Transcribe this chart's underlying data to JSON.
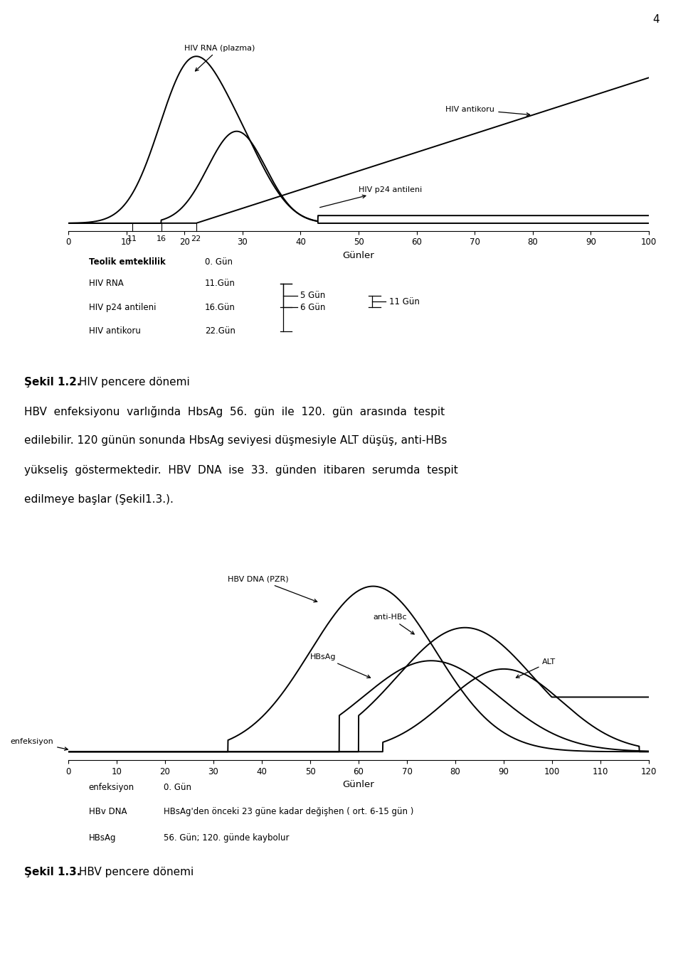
{
  "page_number": "4",
  "bg_color": "#ffffff",
  "fig1": {
    "xlabel": "Günler",
    "xlim": [
      0,
      100
    ],
    "xticks": [
      0,
      10,
      20,
      30,
      40,
      50,
      60,
      70,
      80,
      90,
      100
    ],
    "ylim": [
      -0.05,
      1.3
    ],
    "day_labels": [
      "11",
      "16",
      "22"
    ],
    "day_positions": [
      11,
      16,
      22
    ]
  },
  "fig2": {
    "xlabel": "Günler",
    "xlim": [
      0,
      120
    ],
    "xticks": [
      0,
      10,
      20,
      30,
      40,
      50,
      60,
      70,
      80,
      90,
      100,
      110,
      120
    ],
    "ylim": [
      -0.05,
      1.2
    ]
  },
  "text_lines": [
    [
      "bold",
      "Şekil 1.2.",
      " HIV pencere dönemi"
    ],
    [
      "normal",
      "HBV  enfeksiyonu  varlığında  HbsAg  56.  gün  ile  120.  gün  arasında  tespit"
    ],
    [
      "normal",
      "edilebilir. 120 günün sonunda HbsAg seviyesi düşmesiyle ALT düşüş, anti-HBs"
    ],
    [
      "normal",
      "yükseliş  göstermektedir.  HBV  DNA  ise  33.  günden  itibaren  serumda  tespit"
    ],
    [
      "normal",
      "edilmeye başlar (Şekil1.3.)."
    ]
  ],
  "fig2_legend": [
    [
      "enfeksiyon",
      "0. Gün"
    ],
    [
      "HBv DNA",
      "HBsAg'den önceki 23 güne kadar değişhen ( ort. 6-15 gün )"
    ],
    [
      "HBsAg",
      "56. Gün; 120. günde kaybolur"
    ]
  ],
  "fig2_caption_bold": "Şekil 1.3.",
  "fig2_caption_normal": " HBV pencere dönemi"
}
